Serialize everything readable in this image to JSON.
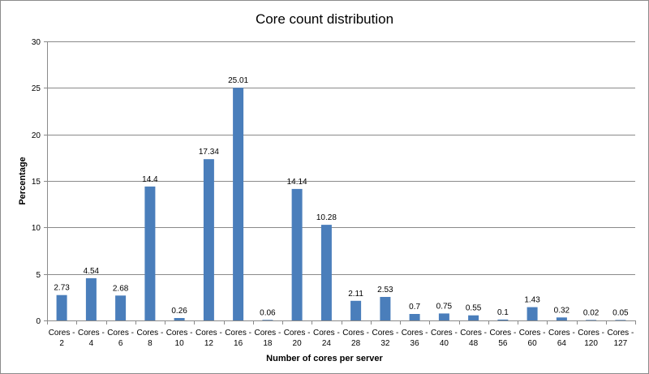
{
  "chart_data": {
    "type": "bar",
    "title": "Core count distribution",
    "xlabel": "Number of cores per server",
    "ylabel": "Percentage",
    "ylim": [
      0,
      30
    ],
    "yticks": [
      0,
      5,
      10,
      15,
      20,
      25,
      30
    ],
    "grid": true,
    "legend": "none",
    "categories": [
      [
        "Cores -",
        "2"
      ],
      [
        "Cores -",
        "4"
      ],
      [
        "Cores -",
        "6"
      ],
      [
        "Cores -",
        "8"
      ],
      [
        "Cores -",
        "10"
      ],
      [
        "Cores -",
        "12"
      ],
      [
        "Cores -",
        "16"
      ],
      [
        "Cores -",
        "18"
      ],
      [
        "Cores -",
        "20"
      ],
      [
        "Cores -",
        "24"
      ],
      [
        "Cores -",
        "28"
      ],
      [
        "Cores -",
        "32"
      ],
      [
        "Cores -",
        "36"
      ],
      [
        "Cores -",
        "40"
      ],
      [
        "Cores -",
        "48"
      ],
      [
        "Cores -",
        "56"
      ],
      [
        "Cores -",
        "60"
      ],
      [
        "Cores -",
        "64"
      ],
      [
        "Cores -",
        "120"
      ],
      [
        "Cores -",
        "127"
      ]
    ],
    "values": [
      2.73,
      4.54,
      2.68,
      14.4,
      0.26,
      17.34,
      25.01,
      0.06,
      14.14,
      10.28,
      2.11,
      2.53,
      0.7,
      0.75,
      0.55,
      0.1,
      1.43,
      0.32,
      0.02,
      0.05
    ],
    "bar_color": "#4a7ebb"
  }
}
